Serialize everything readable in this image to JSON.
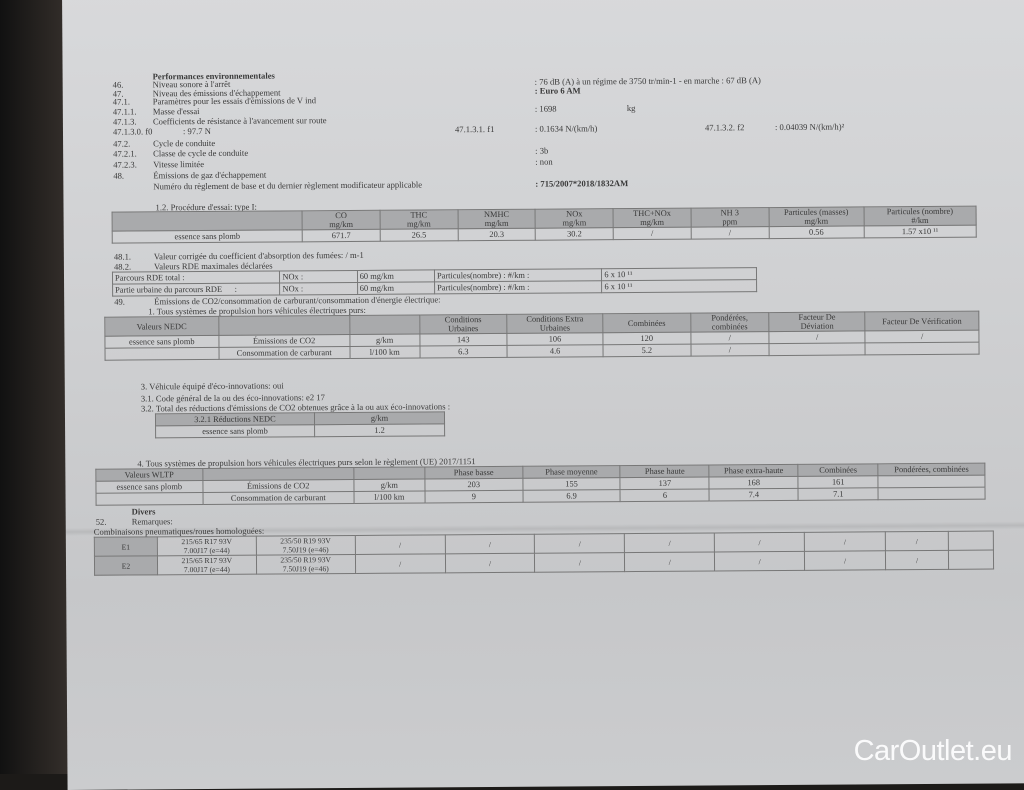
{
  "section_title": "Performances environnementales",
  "lines": [
    {
      "num": "46.",
      "label": "Niveau sonore à l'arrêt",
      "value": ": 76 dB (A)   à un régime de 3750 tr/min-1 - en marche :   67 dB (A)"
    },
    {
      "num": "47.",
      "label": "Niveau des émissions d'échappement",
      "value": ": Euro 6 AM"
    },
    {
      "num": "47.1.",
      "label": "Paramètres pour les essais d'émissions de V ind",
      "value": ""
    },
    {
      "num": "47.1.1.",
      "label": "Masse d'essai",
      "value": ": 1698",
      "unit": "kg"
    },
    {
      "num": "47.1.3.",
      "label": "Coefficients de résistance à l'avancement sur route",
      "value": ""
    },
    {
      "num": "47.1.3.0. f0",
      "label": ": 97.7 N",
      "f1_label": "47.1.3.1.  f1",
      "value": ": 0.1634 N/(km/h)",
      "f2_label": "47.1.3.2.  f2",
      "f2_value": ": 0.04039 N/(km/h)²"
    },
    {
      "num": "47.2.",
      "label": "Cycle de conduite",
      "value": ""
    },
    {
      "num": "47.2.1.",
      "label": "Classe de cycle de conduite",
      "value": ": 3b"
    },
    {
      "num": "47.2.3.",
      "label": "Vitesse limitée",
      "value": ": non"
    },
    {
      "num": "48.",
      "label": "Émissions de gaz d'échappement",
      "value": ""
    },
    {
      "num": "",
      "label": "Numéro du règlement de base et du dernier règlement modificateur applicable",
      "value": ": 715/2007*2018/1832AM"
    }
  ],
  "procedure": "1.2. Procédure d'essai: type I:",
  "table_type1": {
    "rows": [
      [
        "",
        "CO\nmg/km",
        "THC\nmg/km",
        "NMHC\nmg/km",
        "NOx\nmg/km",
        "THC+NOx\nmg/km",
        "NH 3\nppm",
        "Particules (masses)\nmg/km",
        "Particules (nombre)\n#/km"
      ],
      [
        "essence sans plomb",
        "671.7",
        "26.5",
        "20.3",
        "30.2",
        "/",
        "/",
        "0.56",
        "1.57 x10 ¹¹"
      ]
    ]
  },
  "l481": {
    "num": "48.1.",
    "label": "Valeur corrigée du coefficient d'absorption des fumées: / m-1"
  },
  "l482": {
    "num": "48.2.",
    "label": "Valeurs RDE maximales déclarées"
  },
  "table_rde": {
    "rows": [
      [
        "Parcours RDE total :",
        "NOx :",
        "60 mg/km",
        "Particules(nombre) : #/km :",
        "6 x 10 ¹¹"
      ],
      [
        "Partie urbaine du parcours RDE      :",
        "NOx :",
        "60 mg/km",
        "Particules(nombre) : #/km :",
        "6 x 10 ¹¹"
      ]
    ]
  },
  "l49": {
    "num": "49.",
    "label": "Émissions de CO2/consommation de carburant/consommation d'énergie électrique:"
  },
  "sub1": "1. Tous systèmes de propulsion hors véhicules électriques purs:",
  "table_nedc": {
    "rows": [
      [
        "Valeurs NEDC",
        "",
        "",
        "Conditions\nUrbaines",
        "Conditions Extra\nUrbaines",
        "Combinées",
        "Pondérées,\ncombinées",
        "Facteur De\nDéviation",
        "Facteur De Vérification"
      ],
      [
        "essence sans plomb",
        "Émissions de CO2",
        "g/km",
        "143",
        "106",
        "120",
        "/",
        "/",
        "/"
      ],
      [
        "",
        "Consommation de carburant",
        "l/100 km",
        "6.3",
        "4.6",
        "5.2",
        "/",
        "",
        ""
      ]
    ]
  },
  "eco": {
    "l3": "3. Véhicule équipé d'éco-innovations: oui",
    "l31": "3.1. Code général de la ou des éco-innovations: e2 17",
    "l32": "3.2. Total des réductions d'émissions de CO2 obtenues grâce à la ou aux éco-innovations :"
  },
  "table_eco": {
    "rows": [
      [
        "3.2.1 Réductions NEDC",
        "g/km"
      ],
      [
        "essence sans plomb",
        "1.2"
      ]
    ]
  },
  "sub4": "4. Tous systèmes de propulsion hors véhicules électriques purs selon le règlement (UE) 2017/1151",
  "table_wltp": {
    "rows": [
      [
        "Valeurs WLTP",
        "",
        "",
        "Phase basse",
        "Phase moyenne",
        "Phase haute",
        "Phase extra-haute",
        "Combinées",
        "Pondérées, combinées"
      ],
      [
        "essence sans plomb",
        "Émissions de CO2",
        "g/km",
        "203",
        "155",
        "137",
        "168",
        "161",
        ""
      ],
      [
        "",
        "Consommation de carburant",
        "l/100 km",
        "9",
        "6.9",
        "6",
        "7.4",
        "7.1",
        ""
      ]
    ]
  },
  "divers": "Divers",
  "l52": {
    "num": "52.",
    "label": "Remarques:"
  },
  "tyres_title": "Combinaisons pneumatiques/roues homologuées:",
  "table_tyres": {
    "rows": [
      [
        "E1",
        "215/65 R17 93V\n7.00J17 (e=44)",
        "235/50 R19 93V\n7.50J19 (e=46)",
        "/",
        "/",
        "/",
        "/",
        "/",
        "/",
        "/",
        ""
      ],
      [
        "E2",
        "215/65 R17 93V\n7.00J17 (e=44)",
        "235/50 R19 93V\n7.50J19 (e=46)",
        "/",
        "/",
        "/",
        "/",
        "/",
        "/",
        "/",
        ""
      ]
    ]
  },
  "watermark": "CarOutlet.eu"
}
